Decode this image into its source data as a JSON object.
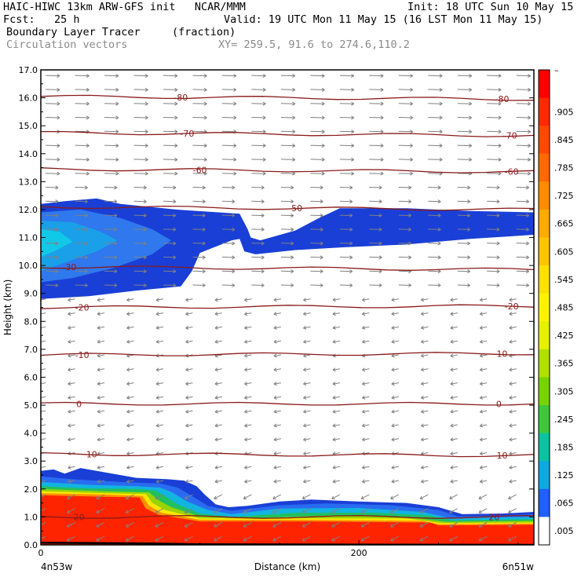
{
  "header": {
    "line1_left": "HAIC-HIWC 13km ARW-GFS init   NCAR/MMM",
    "line1_right": "Init: 18 UTC Sun 10 May 15",
    "line2_left": "Fcst:   25 h",
    "line2_right": "Valid: 19 UTC Mon 11 May 15 (16 LST Mon 11 May 15)",
    "line3_left": "Boundary Layer Tracer",
    "line3_mid": "(fraction)",
    "line4_left": "Circulation vectors",
    "line4_mid": "XY= 259.5, 91.6 to 274.6,110.2"
  },
  "colors": {
    "contour": "#8b1a1a",
    "vector": "#808080",
    "blue_dark": "#1a3fd6",
    "blue_mid": "#2f78ee",
    "cyan": "#12c8e8",
    "red": "#ff2400"
  },
  "chart_data": {
    "type": "heatmap",
    "title": "Boundary Layer Tracer",
    "ylabel": "Height (km)",
    "xlabel": "Distance (km)",
    "x_start_label": "4n53w",
    "x_end_label": "6n51w",
    "xlim": [
      0,
      310
    ],
    "ylim": [
      0,
      17
    ],
    "x_ticks": [
      {
        "value": 0,
        "label": "0"
      },
      {
        "value": 200,
        "label": "200"
      }
    ],
    "y_ticks": [
      {
        "value": 0,
        "label": "0.0"
      },
      {
        "value": 1,
        "label": "1.0"
      },
      {
        "value": 2,
        "label": "2.0"
      },
      {
        "value": 3,
        "label": "3.0"
      },
      {
        "value": 4,
        "label": "4.0"
      },
      {
        "value": 5,
        "label": "5.0"
      },
      {
        "value": 6,
        "label": "6.0"
      },
      {
        "value": 7,
        "label": "7.0"
      },
      {
        "value": 8,
        "label": "8.0"
      },
      {
        "value": 9,
        "label": "9.0"
      },
      {
        "value": 10,
        "label": "10.0"
      },
      {
        "value": 11,
        "label": "11.0"
      },
      {
        "value": 12,
        "label": "12.0"
      },
      {
        "value": 13,
        "label": "13.0"
      },
      {
        "value": 14,
        "label": "14.0"
      },
      {
        "value": 15,
        "label": "15.0"
      },
      {
        "value": 16,
        "label": "16.0"
      },
      {
        "value": 17,
        "label": "17.0"
      }
    ],
    "temperature_contours": [
      {
        "value": -80,
        "label": "-80",
        "height_left": 16.05,
        "height_right": 15.95,
        "label_x": [
          88,
          290
        ]
      },
      {
        "value": -70,
        "label": "-70",
        "height_left": 14.75,
        "height_right": 14.65,
        "label_x": [
          92,
          295
        ]
      },
      {
        "value": -60,
        "label": "-60",
        "height_left": 13.45,
        "height_right": 13.35,
        "label_x": [
          100,
          296
        ]
      },
      {
        "value": -50,
        "label": "-50",
        "height_left": 12.1,
        "height_right": 12.0,
        "label_x": [
          160
        ]
      },
      {
        "value": -30,
        "label": "-30",
        "height_left": 9.95,
        "height_right": 9.85,
        "label_x": [
          18
        ]
      },
      {
        "value": -20,
        "label": "-20",
        "height_left": 8.5,
        "height_right": 8.55,
        "label_x": [
          26,
          296
        ]
      },
      {
        "value": -10,
        "label": "-10",
        "height_left": 6.8,
        "height_right": 6.85,
        "label_x": [
          26,
          289
        ]
      },
      {
        "value": 0,
        "label": "0",
        "height_left": 5.05,
        "height_right": 5.05,
        "label_x": [
          24,
          288
        ]
      },
      {
        "value": 10,
        "label": "10",
        "height_left": 3.25,
        "height_right": 3.2,
        "label_x": [
          32,
          290
        ]
      },
      {
        "value": 20,
        "label": "20",
        "height_left": 1.0,
        "height_right": 1.0,
        "label_x": [
          24,
          285
        ]
      }
    ],
    "colorbar": {
      "labels": [
        ".905",
        ".845",
        ".785",
        ".725",
        ".665",
        ".605",
        ".545",
        ".485",
        ".425",
        ".365",
        ".305",
        ".245",
        ".185",
        ".125",
        ".065",
        ".005"
      ],
      "top_label": "–",
      "colors": [
        "#ff0000",
        "#ff2a00",
        "#ff4a00",
        "#ff6a00",
        "#ff8c00",
        "#ffaa00",
        "#ffc400",
        "#ffe000",
        "#fff200",
        "#e6f000",
        "#b0e000",
        "#78d400",
        "#3cc83c",
        "#10c0a0",
        "#10a8e0",
        "#2060ff",
        "#ffffff"
      ]
    },
    "upper_tracer_layer": {
      "top_km": 12.2,
      "bottom_left_km": 8.8,
      "description": ""
    },
    "lower_tracer_layer": {
      "top_left_km": 2.65,
      "top_right_km": 1.15
    }
  }
}
